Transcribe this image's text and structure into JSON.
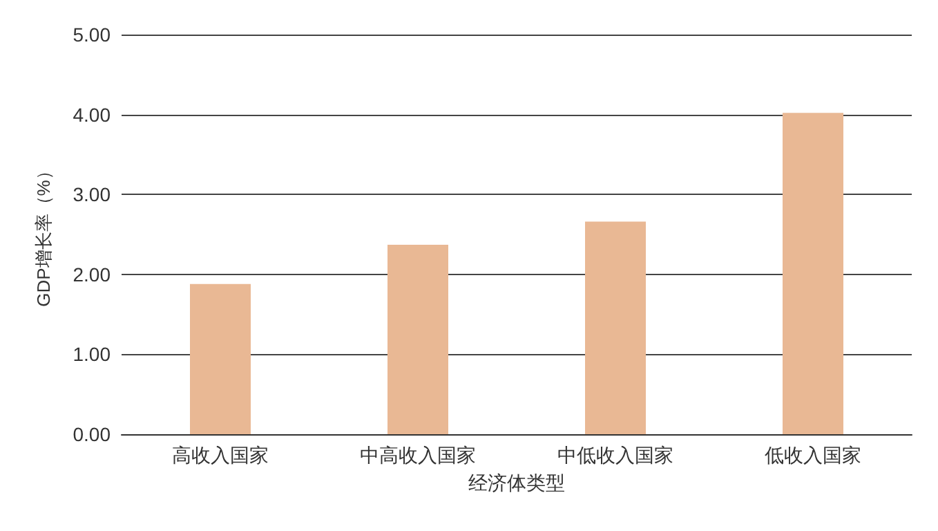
{
  "chart_data": {
    "type": "bar",
    "xlabel": "经济体类型",
    "ylabel": "GDP增长率（%）",
    "categories": [
      "高收入国家",
      "中高收入国家",
      "中低收入国家",
      "低收入国家"
    ],
    "values": [
      1.88,
      2.37,
      2.66,
      4.02
    ],
    "color": "#e9b894",
    "ylim": [
      0,
      5
    ],
    "yticks": [
      {
        "value": 0,
        "label": "0.00"
      },
      {
        "value": 1,
        "label": "1.00"
      },
      {
        "value": 2,
        "label": "2.00"
      },
      {
        "value": 3,
        "label": "3.00"
      },
      {
        "value": 4,
        "label": "4.00"
      },
      {
        "value": 5,
        "label": "5.00"
      }
    ],
    "grid": "y"
  }
}
